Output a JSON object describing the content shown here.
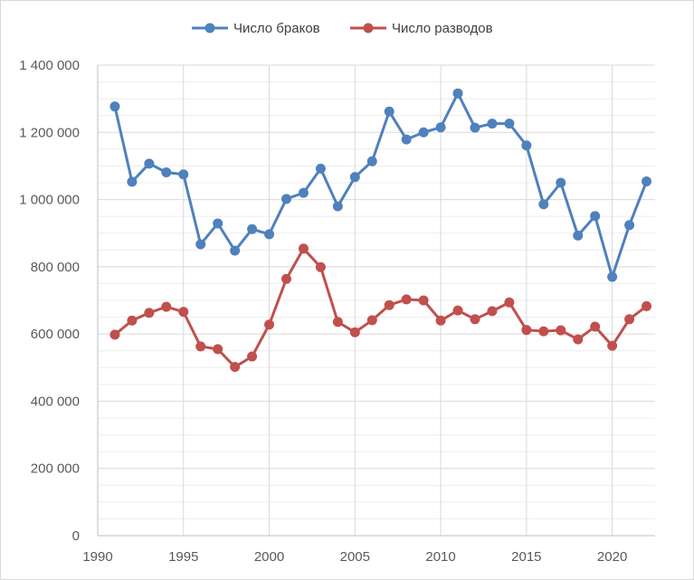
{
  "chart_data": {
    "type": "line",
    "title": "",
    "xlabel": "",
    "ylabel": "",
    "x": [
      1991,
      1992,
      1993,
      1994,
      1995,
      1996,
      1997,
      1998,
      1999,
      2000,
      2001,
      2002,
      2003,
      2004,
      2005,
      2006,
      2007,
      2008,
      2009,
      2010,
      2011,
      2012,
      2013,
      2014,
      2015,
      2016,
      2017,
      2018,
      2019,
      2020,
      2021,
      2022
    ],
    "series": [
      {
        "name": "Число браков",
        "color": "#4f81bd",
        "values": [
          1277000,
          1053000,
          1107000,
          1081000,
          1075000,
          867000,
          929000,
          848000,
          912000,
          897000,
          1002000,
          1020000,
          1092000,
          980000,
          1067000,
          1114000,
          1262000,
          1179000,
          1200000,
          1215000,
          1316000,
          1214000,
          1226000,
          1226000,
          1161000,
          986000,
          1050000,
          893000,
          951000,
          770000,
          924000,
          1054000
        ]
      },
      {
        "name": "Число разводов",
        "color": "#c0504d",
        "values": [
          598000,
          640000,
          663000,
          681000,
          666000,
          563000,
          555000,
          502000,
          533000,
          628000,
          764000,
          854000,
          799000,
          636000,
          605000,
          641000,
          686000,
          703000,
          700000,
          640000,
          670000,
          644000,
          668000,
          694000,
          612000,
          608000,
          611000,
          584000,
          622000,
          565000,
          644000,
          683000
        ]
      }
    ],
    "xticks": [
      "1990",
      "1995",
      "2000",
      "2005",
      "2010",
      "2015",
      "2020"
    ],
    "xtick_values": [
      1990,
      1995,
      2000,
      2005,
      2010,
      2015,
      2020
    ],
    "yticks": [
      "0",
      "200 000",
      "400 000",
      "600 000",
      "800 000",
      "1 000 000",
      "1 200 000",
      "1 400 000"
    ],
    "ytick_values": [
      0,
      200000,
      400000,
      600000,
      800000,
      1000000,
      1200000,
      1400000
    ],
    "xlim": [
      1990,
      2022.5
    ],
    "ylim": [
      0,
      1400000
    ],
    "grid": true,
    "minor_grid": true,
    "legend_position": "top-center"
  }
}
